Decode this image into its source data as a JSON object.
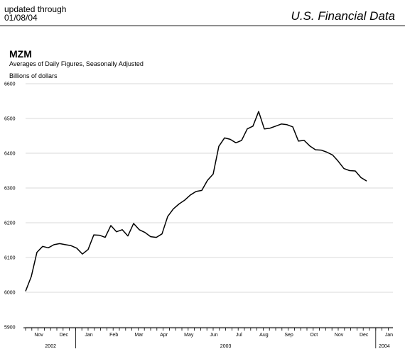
{
  "header": {
    "updated_line1": "updated through",
    "updated_line2": "01/08/04",
    "source": "U.S. Financial Data"
  },
  "chart_data": {
    "type": "line",
    "title": "MZM",
    "subtitle": "Averages of Daily Figures, Seasonally Adjusted",
    "ylabel": "Billions of dollars",
    "xlabel": "",
    "ylim": [
      5900,
      6600
    ],
    "yticks": [
      5900,
      6000,
      6100,
      6200,
      6300,
      6400,
      6500,
      6600
    ],
    "grid": true,
    "month_labels": [
      "Nov",
      "Dec",
      "Jan",
      "Feb",
      "Mar",
      "Apr",
      "May",
      "Jun",
      "Jul",
      "Aug",
      "Sep",
      "Oct",
      "Nov",
      "Dec",
      "Jan"
    ],
    "year_labels": [
      "2002",
      "2003",
      "2004"
    ],
    "series": [
      {
        "name": "",
        "values": [
          6003,
          6045,
          6115,
          6132,
          6128,
          6137,
          6140,
          6137,
          6134,
          6127,
          6110,
          6123,
          6165,
          6164,
          6158,
          6192,
          6174,
          6180,
          6162,
          6198,
          6180,
          6172,
          6160,
          6158,
          6168,
          6218,
          6240,
          6254,
          6265,
          6280,
          6290,
          6293,
          6322,
          6340,
          6420,
          6444,
          6440,
          6430,
          6437,
          6470,
          6478,
          6520,
          6470,
          6472,
          6478,
          6484,
          6482,
          6476,
          6435,
          6437,
          6421,
          6410,
          6409,
          6403,
          6395,
          6377,
          6356,
          6350,
          6349,
          6330,
          6320
        ]
      }
    ],
    "line_color": "#000000",
    "grid_color": "#d9d9d9"
  }
}
